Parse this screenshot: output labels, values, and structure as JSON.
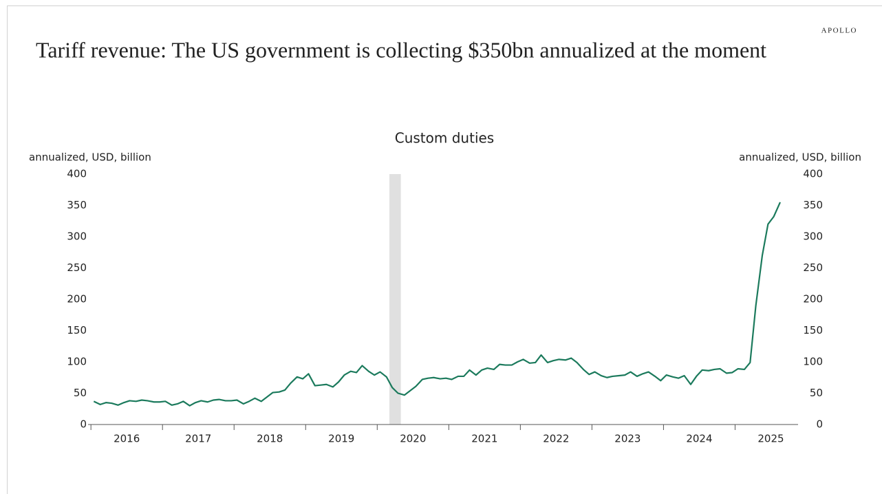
{
  "brand": "APOLLO",
  "headline": "Tariff revenue: The US government is collecting $350bn annualized at the moment",
  "chart_data": {
    "type": "line",
    "title": "Custom duties",
    "ylabel": "annualized, USD, billion",
    "y2label": "annualized, USD, billion",
    "color": "#1b7a5c",
    "recession_color": "#e0e0e0",
    "shaded_regions": [
      [
        2020.17,
        2020.33
      ]
    ],
    "xlim": [
      2015.96,
      2025.88
    ],
    "xticks": [
      {
        "value": 2016.5,
        "label": "2016"
      },
      {
        "value": 2017.5,
        "label": "2017"
      },
      {
        "value": 2018.5,
        "label": "2018"
      },
      {
        "value": 2019.5,
        "label": "2019"
      },
      {
        "value": 2020.5,
        "label": "2020"
      },
      {
        "value": 2021.5,
        "label": "2021"
      },
      {
        "value": 2022.5,
        "label": "2022"
      },
      {
        "value": 2023.5,
        "label": "2023"
      },
      {
        "value": 2024.5,
        "label": "2024"
      },
      {
        "value": 2025.5,
        "label": "2025"
      }
    ],
    "xminorticks": [
      2016,
      2017,
      2018,
      2019,
      2020,
      2021,
      2022,
      2023,
      2024,
      2025
    ],
    "ylim": [
      0,
      400
    ],
    "yticks": [
      0,
      50,
      100,
      150,
      200,
      250,
      300,
      350,
      400
    ],
    "y2lim": [
      0,
      400
    ],
    "y2ticks": [
      0,
      50,
      100,
      150,
      200,
      250,
      300,
      350,
      400
    ],
    "x": [
      2016.04,
      2016.13,
      2016.21,
      2016.29,
      2016.38,
      2016.46,
      2016.54,
      2016.63,
      2016.71,
      2016.79,
      2016.88,
      2016.96,
      2017.04,
      2017.13,
      2017.21,
      2017.29,
      2017.38,
      2017.46,
      2017.54,
      2017.63,
      2017.71,
      2017.79,
      2017.88,
      2017.96,
      2018.04,
      2018.13,
      2018.21,
      2018.29,
      2018.38,
      2018.46,
      2018.54,
      2018.63,
      2018.71,
      2018.79,
      2018.88,
      2018.96,
      2019.04,
      2019.13,
      2019.21,
      2019.29,
      2019.38,
      2019.46,
      2019.54,
      2019.63,
      2019.71,
      2019.79,
      2019.88,
      2019.96,
      2020.04,
      2020.13,
      2020.21,
      2020.29,
      2020.38,
      2020.46,
      2020.54,
      2020.63,
      2020.71,
      2020.79,
      2020.88,
      2020.96,
      2021.04,
      2021.13,
      2021.21,
      2021.29,
      2021.38,
      2021.46,
      2021.54,
      2021.63,
      2021.71,
      2021.79,
      2021.88,
      2021.96,
      2022.04,
      2022.13,
      2022.21,
      2022.29,
      2022.38,
      2022.46,
      2022.54,
      2022.63,
      2022.71,
      2022.79,
      2022.88,
      2022.96,
      2023.04,
      2023.13,
      2023.21,
      2023.29,
      2023.38,
      2023.46,
      2023.54,
      2023.63,
      2023.71,
      2023.79,
      2023.88,
      2023.96,
      2024.04,
      2024.13,
      2024.21,
      2024.29,
      2024.38,
      2024.46,
      2024.54,
      2024.63,
      2024.71,
      2024.79,
      2024.88,
      2024.96,
      2025.04,
      2025.13,
      2025.21,
      2025.29,
      2025.38,
      2025.46,
      2025.54,
      2025.63
    ],
    "values": [
      37,
      32,
      35,
      34,
      31,
      35,
      38,
      37,
      39,
      38,
      36,
      36,
      37,
      31,
      33,
      37,
      30,
      35,
      38,
      36,
      39,
      40,
      38,
      38,
      39,
      33,
      37,
      42,
      37,
      44,
      51,
      52,
      55,
      66,
      76,
      73,
      81,
      62,
      63,
      64,
      60,
      68,
      79,
      85,
      83,
      94,
      85,
      79,
      84,
      76,
      59,
      50,
      47,
      54,
      61,
      72,
      74,
      75,
      73,
      74,
      72,
      77,
      77,
      87,
      79,
      87,
      90,
      88,
      96,
      95,
      95,
      100,
      104,
      98,
      99,
      111,
      99,
      102,
      104,
      103,
      106,
      99,
      88,
      80,
      84,
      78,
      75,
      77,
      78,
      79,
      84,
      77,
      81,
      84,
      77,
      70,
      79,
      76,
      74,
      78,
      64,
      77,
      87,
      86,
      88,
      89,
      82,
      83,
      89,
      88,
      99,
      190,
      270,
      320,
      332,
      355
    ]
  }
}
